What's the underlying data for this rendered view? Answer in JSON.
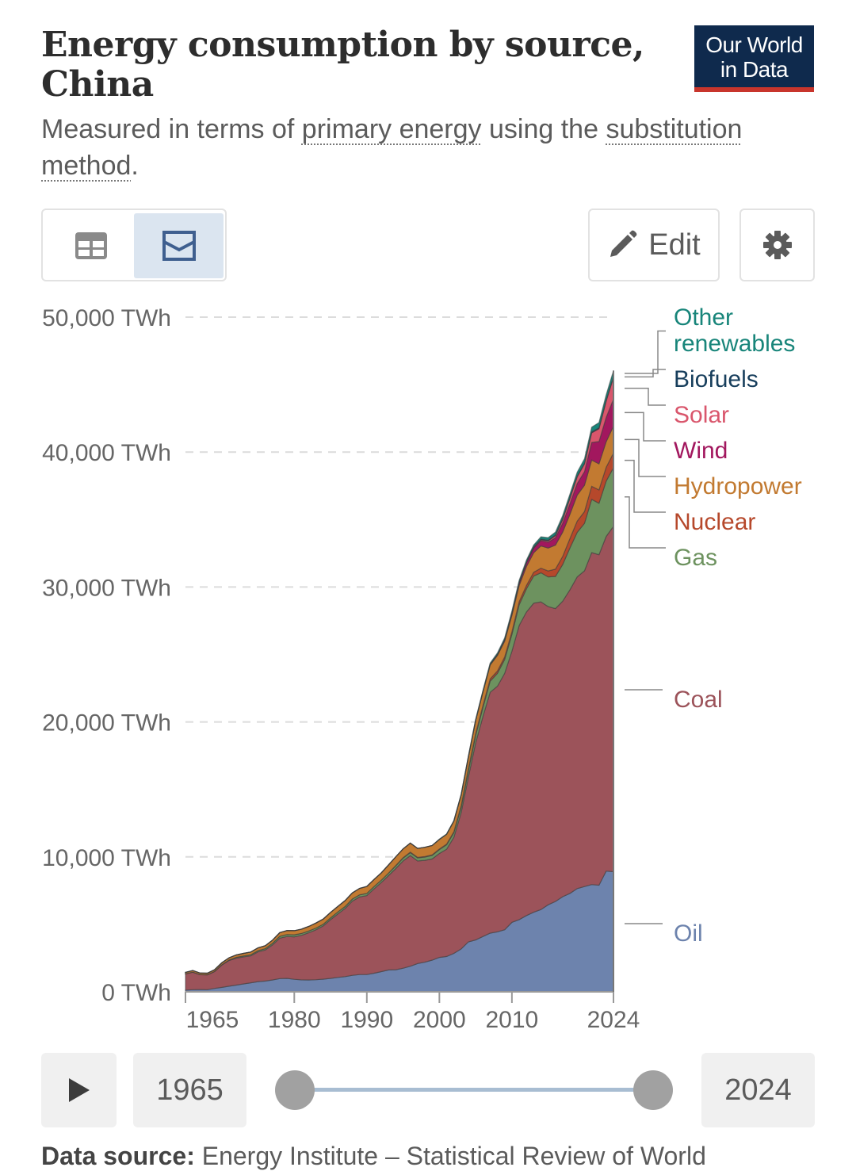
{
  "header": {
    "title": "Energy consumption by source, China",
    "logo_line1": "Our World",
    "logo_line2": "in Data",
    "subtitle_prefix": "Measured in terms of ",
    "subtitle_link1": "primary energy",
    "subtitle_mid": " using the ",
    "subtitle_link2": "substitution method",
    "subtitle_suffix": "."
  },
  "toolbar": {
    "table_icon": "table-icon",
    "chart_icon": "stacked-area-chart-icon",
    "edit_label": "Edit",
    "edit_icon": "pencil-icon",
    "settings_icon": "gear-icon"
  },
  "timeline": {
    "play_icon": "play-icon",
    "start_year": "1965",
    "end_year": "2024"
  },
  "footer": {
    "source_label": "Data source:",
    "source_text": " Energy Institute – Statistical Review of World"
  },
  "chart_data": {
    "type": "area",
    "stacked": true,
    "title": "Energy consumption by source, China",
    "subtitle": "Measured in terms of primary energy using the substitution method.",
    "unit": "TWh",
    "ylim": [
      0,
      50000
    ],
    "yticks": [
      0,
      10000,
      20000,
      30000,
      40000,
      50000
    ],
    "ytick_labels": [
      "0 TWh",
      "10,000 TWh",
      "20,000 TWh",
      "30,000 TWh",
      "40,000 TWh",
      "50,000 TWh"
    ],
    "xlim": [
      1965,
      2024
    ],
    "xticks": [
      1965,
      1980,
      1990,
      2000,
      2010,
      2024
    ],
    "grid": "horizontal dashed",
    "legend": "right, inline labels",
    "x": [
      1965,
      1966,
      1967,
      1968,
      1969,
      1970,
      1971,
      1972,
      1973,
      1974,
      1975,
      1976,
      1977,
      1978,
      1979,
      1980,
      1981,
      1982,
      1983,
      1984,
      1985,
      1986,
      1987,
      1988,
      1989,
      1990,
      1991,
      1992,
      1993,
      1994,
      1995,
      1996,
      1997,
      1998,
      1999,
      2000,
      2001,
      2002,
      2003,
      2004,
      2005,
      2006,
      2007,
      2008,
      2009,
      2010,
      2011,
      2012,
      2013,
      2014,
      2015,
      2016,
      2017,
      2018,
      2019,
      2020,
      2021,
      2022,
      2023,
      2024
    ],
    "series": [
      {
        "name": "Oil",
        "color": "#6d83ad",
        "values": [
          130,
          160,
          170,
          160,
          250,
          330,
          420,
          500,
          590,
          670,
          760,
          800,
          880,
          980,
          1000,
          930,
          890,
          880,
          900,
          940,
          1000,
          1070,
          1130,
          1220,
          1280,
          1280,
          1380,
          1500,
          1620,
          1640,
          1750,
          1900,
          2100,
          2200,
          2350,
          2550,
          2620,
          2850,
          3180,
          3700,
          3850,
          4100,
          4350,
          4450,
          4600,
          5150,
          5350,
          5650,
          5900,
          6100,
          6450,
          6700,
          7050,
          7300,
          7650,
          7800,
          7950,
          7900,
          8950,
          8900
        ]
      },
      {
        "name": "Coal",
        "color": "#9c535a",
        "values": [
          1200,
          1300,
          1100,
          1100,
          1250,
          1650,
          1900,
          2000,
          2000,
          2000,
          2200,
          2300,
          2600,
          3000,
          3100,
          3150,
          3300,
          3500,
          3700,
          3950,
          4350,
          4700,
          5050,
          5500,
          5750,
          5850,
          6250,
          6600,
          7000,
          7500,
          7950,
          8200,
          7600,
          7550,
          7500,
          7700,
          7950,
          8600,
          10100,
          12200,
          14600,
          16300,
          17850,
          18200,
          19000,
          20100,
          21800,
          22500,
          22900,
          22800,
          22100,
          21700,
          21900,
          22500,
          23100,
          23400,
          24600,
          24500,
          24800,
          25600
        ]
      },
      {
        "name": "Gas",
        "color": "#6d925f",
        "values": [
          10,
          10,
          10,
          10,
          12,
          30,
          40,
          60,
          70,
          80,
          90,
          100,
          120,
          140,
          150,
          150,
          140,
          130,
          130,
          130,
          140,
          150,
          150,
          160,
          160,
          170,
          180,
          180,
          190,
          200,
          210,
          220,
          230,
          240,
          260,
          290,
          330,
          350,
          400,
          480,
          550,
          670,
          820,
          950,
          1030,
          1250,
          1540,
          1720,
          2010,
          2160,
          2200,
          2390,
          2720,
          3100,
          3300,
          3520,
          3950,
          3810,
          4100,
          4350
        ]
      },
      {
        "name": "Nuclear",
        "color": "#b6482b",
        "values": [
          0,
          0,
          0,
          0,
          0,
          0,
          0,
          0,
          0,
          0,
          0,
          0,
          0,
          0,
          0,
          0,
          0,
          0,
          0,
          0,
          0,
          0,
          0,
          0,
          0,
          0,
          0,
          0,
          0,
          30,
          35,
          40,
          40,
          40,
          40,
          45,
          50,
          70,
          120,
          140,
          150,
          150,
          170,
          180,
          190,
          200,
          230,
          250,
          280,
          340,
          440,
          540,
          600,
          700,
          830,
          870,
          970,
          990,
          1030,
          1080
        ]
      },
      {
        "name": "Hydropower",
        "color": "#c27a31",
        "values": [
          100,
          110,
          110,
          110,
          120,
          140,
          160,
          170,
          190,
          200,
          210,
          220,
          230,
          270,
          290,
          300,
          320,
          340,
          370,
          380,
          400,
          410,
          430,
          450,
          480,
          510,
          520,
          540,
          600,
          640,
          650,
          660,
          660,
          680,
          690,
          710,
          730,
          780,
          790,
          880,
          960,
          1000,
          1030,
          1150,
          1160,
          1220,
          1200,
          1400,
          1450,
          1650,
          1700,
          1780,
          1800,
          1800,
          1930,
          1950,
          1940,
          1930,
          1890,
          2000
        ]
      },
      {
        "name": "Wind",
        "color": "#a2175e",
        "values": [
          0,
          0,
          0,
          0,
          0,
          0,
          0,
          0,
          0,
          0,
          0,
          0,
          0,
          0,
          0,
          0,
          0,
          0,
          0,
          0,
          0,
          0,
          0,
          0,
          0,
          0,
          0,
          0,
          0,
          0,
          0,
          0,
          0,
          0,
          0,
          0,
          0,
          0,
          0,
          0,
          10,
          20,
          40,
          60,
          120,
          150,
          200,
          280,
          340,
          400,
          430,
          540,
          660,
          780,
          860,
          1000,
          1300,
          1650,
          1800,
          2000
        ]
      },
      {
        "name": "Solar",
        "color": "#d9566c",
        "values": [
          0,
          0,
          0,
          0,
          0,
          0,
          0,
          0,
          0,
          0,
          0,
          0,
          0,
          0,
          0,
          0,
          0,
          0,
          0,
          0,
          0,
          0,
          0,
          0,
          0,
          0,
          0,
          0,
          0,
          0,
          0,
          0,
          0,
          0,
          0,
          0,
          0,
          0,
          0,
          0,
          0,
          0,
          0,
          0,
          0,
          0,
          10,
          20,
          40,
          60,
          100,
          160,
          280,
          400,
          490,
          580,
          710,
          950,
          1200,
          1600
        ]
      },
      {
        "name": "Biofuels",
        "color": "#173e5c",
        "values": [
          0,
          0,
          0,
          0,
          0,
          0,
          0,
          0,
          0,
          0,
          0,
          0,
          0,
          0,
          0,
          0,
          0,
          0,
          0,
          0,
          0,
          0,
          0,
          0,
          0,
          0,
          0,
          0,
          0,
          0,
          0,
          0,
          0,
          0,
          0,
          0,
          0,
          10,
          10,
          20,
          20,
          30,
          30,
          35,
          35,
          40,
          40,
          45,
          45,
          45,
          50,
          50,
          50,
          55,
          60,
          60,
          70,
          75,
          80,
          90
        ]
      },
      {
        "name": "Other renewables",
        "color": "#18857a",
        "values": [
          0,
          0,
          0,
          0,
          0,
          0,
          0,
          0,
          0,
          0,
          0,
          0,
          0,
          0,
          0,
          0,
          0,
          0,
          0,
          0,
          0,
          0,
          0,
          0,
          0,
          0,
          0,
          0,
          0,
          0,
          0,
          0,
          0,
          0,
          0,
          20,
          25,
          30,
          40,
          50,
          60,
          70,
          80,
          90,
          100,
          120,
          130,
          140,
          150,
          170,
          190,
          210,
          240,
          260,
          290,
          320,
          360,
          380,
          400,
          420
        ]
      }
    ]
  }
}
